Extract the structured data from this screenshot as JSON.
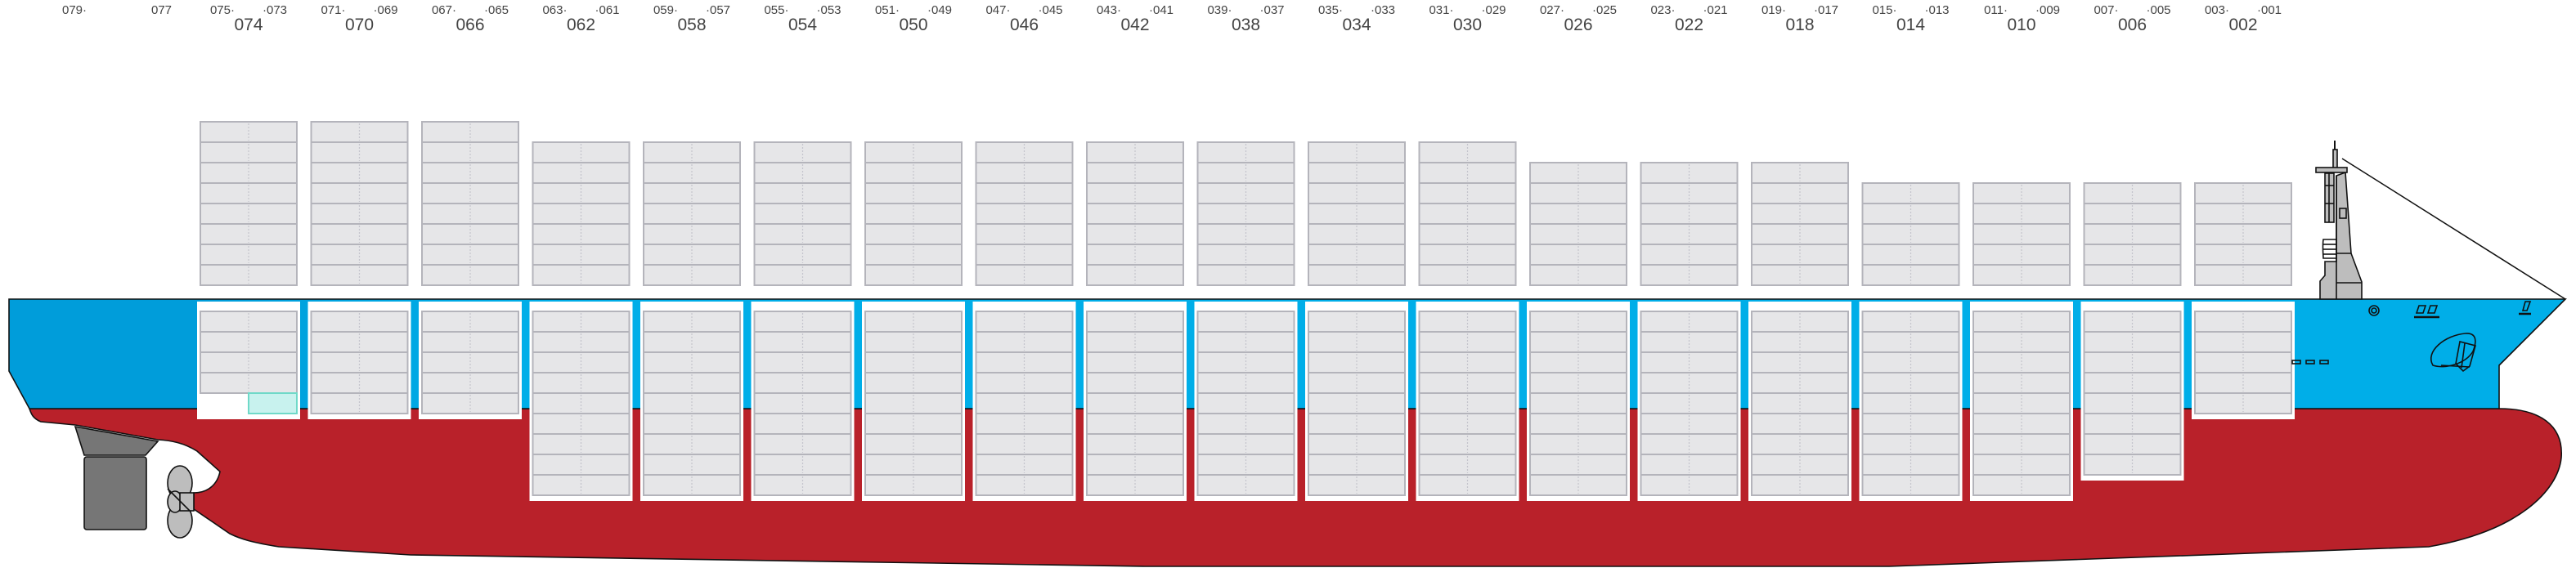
{
  "colors": {
    "hull_topside": "#00aee8",
    "hull_topside_stern": "#009dda",
    "hull_bottom": "#b9212a",
    "container_fill": "#e6e6e8",
    "container_border": "#b4b4bb",
    "highlight_fill": "#c8f2ee",
    "highlight_border": "#6fd9c8",
    "superstructure": "#bdbdbd",
    "rudder": "#767676",
    "propeller": "#bdbdbd"
  },
  "stern_labels": [
    {
      "text": "079·"
    },
    {
      "text": "077"
    }
  ],
  "bays": [
    {
      "label": "074",
      "left": "075·",
      "right": "·073",
      "deck_tiers": 8,
      "hold_tiers": 5,
      "hold_partial_bottom": true
    },
    {
      "label": "070",
      "left": "071·",
      "right": "·069",
      "deck_tiers": 8,
      "hold_tiers": 5
    },
    {
      "label": "066",
      "left": "067·",
      "right": "·065",
      "deck_tiers": 8,
      "hold_tiers": 5
    },
    {
      "label": "062",
      "left": "063·",
      "right": "·061",
      "deck_tiers": 7,
      "hold_tiers": 9
    },
    {
      "label": "058",
      "left": "059·",
      "right": "·057",
      "deck_tiers": 7,
      "hold_tiers": 9
    },
    {
      "label": "054",
      "left": "055·",
      "right": "·053",
      "deck_tiers": 7,
      "hold_tiers": 9
    },
    {
      "label": "050",
      "left": "051·",
      "right": "·049",
      "deck_tiers": 7,
      "hold_tiers": 9
    },
    {
      "label": "046",
      "left": "047·",
      "right": "·045",
      "deck_tiers": 7,
      "hold_tiers": 9
    },
    {
      "label": "042",
      "left": "043·",
      "right": "·041",
      "deck_tiers": 7,
      "hold_tiers": 9
    },
    {
      "label": "038",
      "left": "039·",
      "right": "·037",
      "deck_tiers": 7,
      "hold_tiers": 9
    },
    {
      "label": "034",
      "left": "035·",
      "right": "·033",
      "deck_tiers": 7,
      "hold_tiers": 9
    },
    {
      "label": "030",
      "left": "031·",
      "right": "·029",
      "deck_tiers": 7,
      "hold_tiers": 9
    },
    {
      "label": "026",
      "left": "027·",
      "right": "·025",
      "deck_tiers": 6,
      "hold_tiers": 9
    },
    {
      "label": "022",
      "left": "023·",
      "right": "·021",
      "deck_tiers": 6,
      "hold_tiers": 9
    },
    {
      "label": "018",
      "left": "019·",
      "right": "·017",
      "deck_tiers": 6,
      "hold_tiers": 9
    },
    {
      "label": "014",
      "left": "015·",
      "right": "·013",
      "deck_tiers": 5,
      "hold_tiers": 9
    },
    {
      "label": "010",
      "left": "011·",
      "right": "·009",
      "deck_tiers": 5,
      "hold_tiers": 9
    },
    {
      "label": "006",
      "left": "007·",
      "right": "·005",
      "deck_tiers": 5,
      "hold_tiers": 8
    },
    {
      "label": "002",
      "left": "003·",
      "right": "·001",
      "deck_tiers": 5,
      "hold_tiers": 5
    }
  ]
}
